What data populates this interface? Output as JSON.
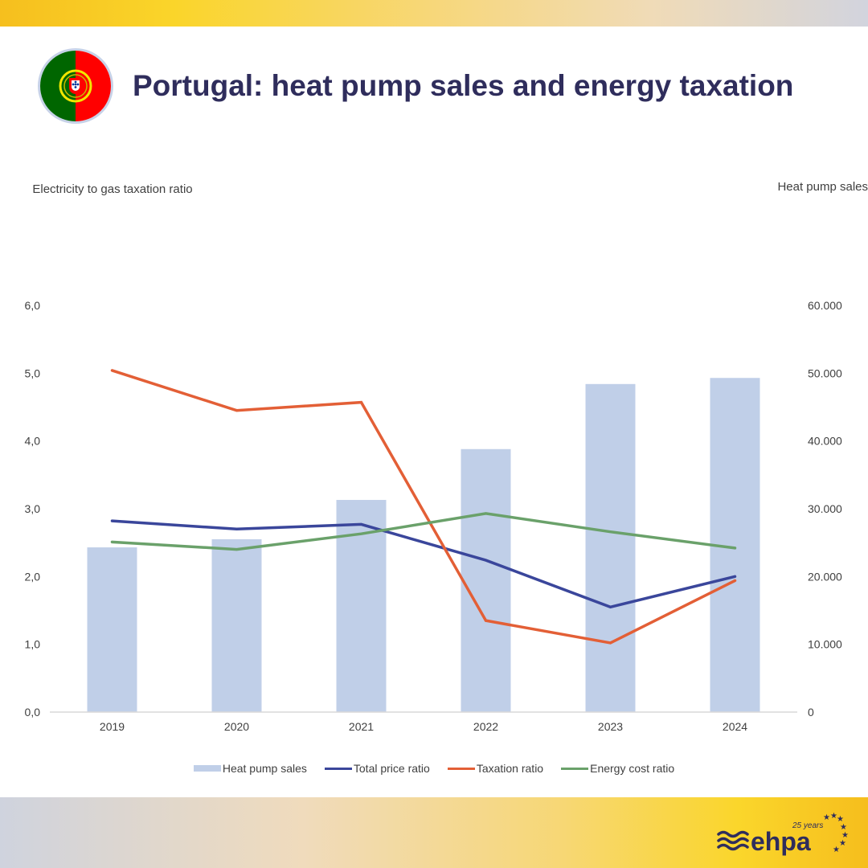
{
  "header": {
    "title": "Portugal: heat pump sales and energy taxation",
    "flag_icon": "portugal-flag-icon"
  },
  "chart_data": {
    "type": "bar+line",
    "title": "Portugal: heat pump sales and energy taxation",
    "ylabel_left": "Electricity to gas taxation ratio",
    "ylabel_right": "Heat pump sales",
    "categories": [
      "2019",
      "2020",
      "2021",
      "2022",
      "2023",
      "2024"
    ],
    "ylim_left": [
      0,
      6
    ],
    "ylim_right": [
      0,
      60000
    ],
    "yticks_left": [
      "0,0",
      "1,0",
      "2,0",
      "3,0",
      "4,0",
      "5,0",
      "6,0"
    ],
    "yticks_right": [
      "0",
      "10.000",
      "20.000",
      "30.000",
      "40.000",
      "50.000",
      "60.000"
    ],
    "grid": false,
    "legend_position": "bottom",
    "series": [
      {
        "name": "Heat pump sales",
        "type": "bar",
        "axis": "right",
        "color": "#c0cfe8",
        "values": [
          24300,
          25500,
          31300,
          38800,
          48400,
          49300
        ]
      },
      {
        "name": "Total price ratio",
        "type": "line",
        "axis": "left",
        "color": "#3a469b",
        "values": [
          2.82,
          2.7,
          2.77,
          2.24,
          1.55,
          2.0
        ]
      },
      {
        "name": "Taxation ratio",
        "type": "line",
        "axis": "left",
        "color": "#e35f36",
        "values": [
          5.04,
          4.45,
          4.57,
          1.35,
          1.02,
          1.94
        ]
      },
      {
        "name": "Energy cost ratio",
        "type": "line",
        "axis": "left",
        "color": "#6aa16a",
        "values": [
          2.51,
          2.4,
          2.63,
          2.93,
          2.66,
          2.42
        ]
      }
    ]
  },
  "footer": {
    "logo_text": "ehpa",
    "logo_badge": "25 years"
  }
}
